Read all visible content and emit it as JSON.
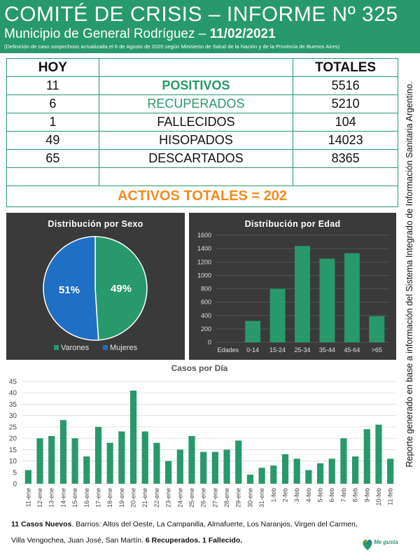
{
  "header": {
    "title": "COMITÉ DE CRISIS – INFORME Nº 325",
    "subtitle_prefix": "Municipio de General Rodríguez – ",
    "subtitle_date": "11/02/2021",
    "note": "(Definición de caso sospechoso actualizada el 6 de Agosto de 2020 según Ministerio de Salud de la Nación y de la Provincia de Buenos Aires)"
  },
  "table": {
    "header_hoy": "HOY",
    "header_totales": "TOTALES",
    "rows": [
      {
        "hoy": "11",
        "label": "POSITIVOS",
        "total": "5516"
      },
      {
        "hoy": "6",
        "label": "RECUPERADOS",
        "total": "5210"
      },
      {
        "hoy": "1",
        "label": "FALLECIDOS",
        "total": "104"
      },
      {
        "hoy": "49",
        "label": "HISOPADOS",
        "total": "14023"
      },
      {
        "hoy": "65",
        "label": "DESCARTADOS",
        "total": "8365"
      }
    ],
    "activos": "ACTIVOS TOTALES = 202"
  },
  "side_note": "Reporte generado en base a información del Sistema Integrado de Información Sanitaria Argentino.",
  "colors": {
    "green": "#27996b",
    "blue": "#1f6fc4",
    "orange": "#f08c1e",
    "panel": "#3a3a3a"
  },
  "chart_data": [
    {
      "type": "pie",
      "title": "Distribución por Sexo",
      "labels": [
        "Varones",
        "Mujeres"
      ],
      "values": [
        49,
        51
      ],
      "value_labels": [
        "49%",
        "51%"
      ],
      "colors": [
        "#27996b",
        "#1f6fc4"
      ],
      "legend": "bottom"
    },
    {
      "type": "bar",
      "title": "Distribución por Edad",
      "x_axis_title": "Edades",
      "categories": [
        "0-14",
        "15-24",
        "25-34",
        "35-44",
        "45-64",
        ">65"
      ],
      "values": [
        320,
        800,
        1440,
        1250,
        1330,
        390
      ],
      "ylim": [
        0,
        1600
      ],
      "yticks": [
        0,
        200,
        400,
        600,
        800,
        1000,
        1200,
        1400,
        1600
      ],
      "grid": true
    },
    {
      "type": "bar",
      "title": "Casos por Día",
      "categories": [
        "11-ene",
        "12-ene",
        "13-ene",
        "14-ene",
        "15-ene",
        "16-ene",
        "17-ene",
        "18-ene",
        "19-ene",
        "20-ene",
        "21-ene",
        "22-ene",
        "23-ene",
        "24-ene",
        "25-ene",
        "26-ene",
        "27-ene",
        "28-ene",
        "29-ene",
        "30-ene",
        "31-ene",
        "1-feb",
        "2-feb",
        "3-feb",
        "4-feb",
        "5-feb",
        "6-feb",
        "7-feb",
        "8-feb",
        "9-feb",
        "10-feb",
        "11-feb"
      ],
      "values": [
        6,
        20,
        21,
        28,
        20,
        12,
        25,
        18,
        23,
        41,
        23,
        18,
        10,
        15,
        21,
        14,
        14,
        15,
        19,
        4,
        7,
        8,
        13,
        11,
        6,
        9,
        11,
        20,
        12,
        24,
        26,
        11
      ],
      "ylim": [
        0,
        45
      ],
      "yticks": [
        0,
        5,
        10,
        15,
        20,
        25,
        30,
        35,
        40,
        45
      ],
      "grid": true
    }
  ],
  "footer": {
    "line1_bold": "11 Casos Nuevos",
    "line1_text": ". Barrios: Altos del Oeste, La Campanilla, Almafuerte, Los Naranjos, Virgen del Carmen,",
    "line2_text": "Villa Vengochea, Juan José, San Martín. ",
    "line2_bold": "6 Recuperados. 1 Fallecido.",
    "logo_text": "Me gusta"
  }
}
